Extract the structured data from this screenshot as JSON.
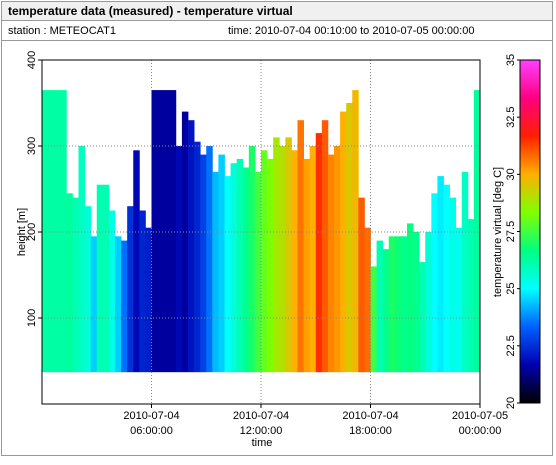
{
  "header": {
    "title": "temperature data (measured) - temperature virtual",
    "station": "station : METEOCAT1",
    "time": "time: 2010-07-04 00:10:00 to 2010-07-05 00:00:00"
  },
  "chart_data": {
    "type": "time-height",
    "x_label": "time",
    "y_label": "height [m]",
    "colorbar_label": "temperature virtual [deg C]",
    "xlim": [
      "2010-07-04 00:00:00",
      "2010-07-05 00:00:00"
    ],
    "xticks": [
      {
        "value": "2010-07-04 06:00:00",
        "label": [
          "2010-07-04",
          "06:00:00"
        ]
      },
      {
        "value": "2010-07-04 12:00:00",
        "label": [
          "2010-07-04",
          "12:00:00"
        ]
      },
      {
        "value": "2010-07-04 18:00:00",
        "label": [
          "2010-07-04",
          "18:00:00"
        ]
      },
      {
        "value": "2010-07-05 00:00:00",
        "label": [
          "2010-07-05",
          "00:00:00"
        ]
      }
    ],
    "ylim": [
      0,
      400
    ],
    "yticks": [
      100,
      200,
      300,
      400
    ],
    "grid": true,
    "clim": [
      20,
      35
    ],
    "cticks": [
      20,
      22.5,
      25,
      27.5,
      30,
      32.5,
      35
    ],
    "colormap": [
      "#000000",
      "#0000b0",
      "#0060ff",
      "#00ffff",
      "#00ff80",
      "#80ff00",
      "#ffb000",
      "#ff2000",
      "#ff0080",
      "#ff40ff"
    ],
    "bottom": 37,
    "x": [
      "2010-07-04 00:20",
      "2010-07-04 00:40",
      "2010-07-04 01:00",
      "2010-07-04 01:20",
      "2010-07-04 01:40",
      "2010-07-04 02:00",
      "2010-07-04 02:20",
      "2010-07-04 02:40",
      "2010-07-04 03:00",
      "2010-07-04 03:20",
      "2010-07-04 03:40",
      "2010-07-04 04:00",
      "2010-07-04 04:20",
      "2010-07-04 04:40",
      "2010-07-04 05:00",
      "2010-07-04 05:20",
      "2010-07-04 05:40",
      "2010-07-04 06:00",
      "2010-07-04 06:20",
      "2010-07-04 06:40",
      "2010-07-04 07:00",
      "2010-07-04 07:20",
      "2010-07-04 07:40",
      "2010-07-04 08:00",
      "2010-07-04 08:20",
      "2010-07-04 08:40",
      "2010-07-04 09:00",
      "2010-07-04 09:20",
      "2010-07-04 09:40",
      "2010-07-04 10:00",
      "2010-07-04 10:20",
      "2010-07-04 10:40",
      "2010-07-04 11:00",
      "2010-07-04 11:20",
      "2010-07-04 11:40",
      "2010-07-04 12:00",
      "2010-07-04 12:20",
      "2010-07-04 12:40",
      "2010-07-04 13:00",
      "2010-07-04 13:20",
      "2010-07-04 13:40",
      "2010-07-04 14:00",
      "2010-07-04 14:20",
      "2010-07-04 14:40",
      "2010-07-04 15:00",
      "2010-07-04 15:20",
      "2010-07-04 15:40",
      "2010-07-04 16:00",
      "2010-07-04 16:20",
      "2010-07-04 16:40",
      "2010-07-04 17:00",
      "2010-07-04 17:20",
      "2010-07-04 17:40",
      "2010-07-04 18:00",
      "2010-07-04 18:20",
      "2010-07-04 18:40",
      "2010-07-04 19:00",
      "2010-07-04 19:20",
      "2010-07-04 19:40",
      "2010-07-04 20:00",
      "2010-07-04 20:20",
      "2010-07-04 20:40",
      "2010-07-04 21:00",
      "2010-07-04 21:20",
      "2010-07-04 21:40",
      "2010-07-04 22:00",
      "2010-07-04 22:20",
      "2010-07-04 22:40",
      "2010-07-04 23:00",
      "2010-07-04 23:20",
      "2010-07-04 23:40",
      "2010-07-05 00:00"
    ],
    "heights": [
      365,
      365,
      365,
      365,
      245,
      240,
      300,
      230,
      195,
      255,
      255,
      225,
      195,
      190,
      230,
      295,
      225,
      205,
      365,
      365,
      365,
      365,
      300,
      340,
      330,
      305,
      290,
      300,
      270,
      290,
      265,
      280,
      285,
      275,
      300,
      270,
      295,
      285,
      310,
      300,
      310,
      295,
      330,
      285,
      300,
      315,
      330,
      290,
      300,
      340,
      350,
      365,
      240,
      205,
      160,
      190,
      180,
      195,
      195,
      195,
      210,
      200,
      165,
      200,
      245,
      265,
      255,
      240,
      205,
      270,
      215,
      365
    ],
    "temperatures": [
      26.2,
      26.2,
      26.2,
      26.2,
      26.3,
      26,
      25.8,
      25.5,
      24.5,
      26,
      26,
      25.3,
      24.5,
      23.5,
      22.5,
      21.8,
      22.3,
      22.2,
      21.5,
      21.5,
      21.5,
      21.5,
      21.8,
      21.5,
      22,
      22.3,
      22.8,
      23.5,
      24.3,
      24.5,
      25,
      25.5,
      26,
      26.5,
      27,
      27.5,
      28,
      28.3,
      28.8,
      29,
      29.5,
      30,
      30.7,
      30.2,
      30,
      31.5,
      31,
      30.5,
      30.3,
      30,
      29.5,
      29.8,
      31,
      30.8,
      27.5,
      26,
      26.5,
      27,
      26.8,
      26.5,
      26.7,
      26.5,
      26,
      25.5,
      25,
      24.8,
      25,
      25.3,
      25.2,
      25.8,
      26,
      26.3
    ]
  }
}
